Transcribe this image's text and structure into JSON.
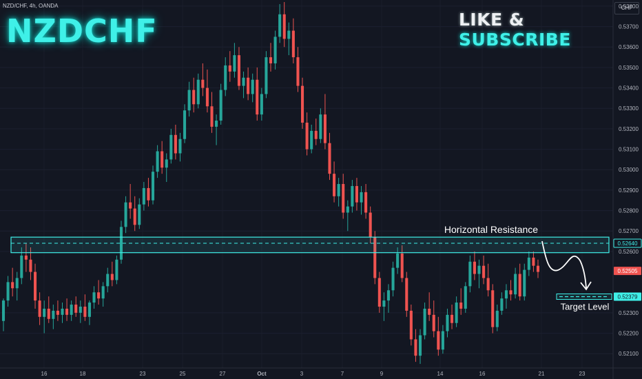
{
  "symbol_info": "NZD/CHF, 4h, OANDA",
  "title": "NZDCHF",
  "cta": {
    "part1": "LIKE & ",
    "part2": "SUBSCRIBE"
  },
  "currency": "CHF",
  "colors": {
    "bull": "#26a69a",
    "bear": "#ef5350",
    "accent": "#3ff0e8",
    "background": "#131722"
  },
  "chart_data": {
    "type": "candlestick",
    "timeframe": "4h",
    "y_axis_labels": [
      "0.53800",
      "0.53700",
      "0.53600",
      "0.53500",
      "0.53400",
      "0.53300",
      "0.53200",
      "0.53100",
      "0.53000",
      "0.52900",
      "0.52800",
      "0.52700",
      "0.52600",
      "0.52300",
      "0.52200",
      "0.52100"
    ],
    "x_axis_labels": [
      "16",
      "18",
      "23",
      "25",
      "27",
      "Oct",
      "3",
      "7",
      "9",
      "14",
      "16",
      "21",
      "23"
    ],
    "ylim": [
      0.5203,
      0.5383
    ],
    "resistance_zone": {
      "low": 0.52594,
      "high": 0.5267,
      "level": 0.5264,
      "label": "Horizontal Resistance",
      "level_label": "0.52640"
    },
    "target": {
      "level": 0.52379,
      "label": "Target Level",
      "level_label": "0.52379"
    },
    "current_price": {
      "value": 0.52505,
      "label": "0.52505"
    },
    "candles": [
      [
        0.5226,
        0.5237,
        0.5221,
        0.5236
      ],
      [
        0.5236,
        0.5248,
        0.5233,
        0.5245
      ],
      [
        0.5245,
        0.5252,
        0.5238,
        0.5242
      ],
      [
        0.5242,
        0.525,
        0.5236,
        0.5247
      ],
      [
        0.5247,
        0.5262,
        0.5244,
        0.5258
      ],
      [
        0.5258,
        0.5264,
        0.525,
        0.5256
      ],
      [
        0.5256,
        0.5262,
        0.5246,
        0.525
      ],
      [
        0.525,
        0.5254,
        0.5232,
        0.5236
      ],
      [
        0.5236,
        0.524,
        0.5224,
        0.5228
      ],
      [
        0.5228,
        0.5236,
        0.522,
        0.5232
      ],
      [
        0.5232,
        0.5238,
        0.5225,
        0.5227
      ],
      [
        0.5227,
        0.5234,
        0.5222,
        0.5231
      ],
      [
        0.5231,
        0.5236,
        0.5226,
        0.5229
      ],
      [
        0.5229,
        0.5235,
        0.5225,
        0.5232
      ],
      [
        0.5232,
        0.5237,
        0.5226,
        0.5229
      ],
      [
        0.5229,
        0.5236,
        0.5226,
        0.5234
      ],
      [
        0.5234,
        0.5238,
        0.5228,
        0.523
      ],
      [
        0.523,
        0.5236,
        0.5225,
        0.5233
      ],
      [
        0.5233,
        0.5239,
        0.5226,
        0.5228
      ],
      [
        0.5228,
        0.5236,
        0.5224,
        0.5235
      ],
      [
        0.5235,
        0.5243,
        0.5232,
        0.524
      ],
      [
        0.524,
        0.5246,
        0.5234,
        0.5237
      ],
      [
        0.5237,
        0.5245,
        0.5233,
        0.5243
      ],
      [
        0.5243,
        0.5252,
        0.524,
        0.5249
      ],
      [
        0.5249,
        0.5255,
        0.5243,
        0.5246
      ],
      [
        0.5246,
        0.5258,
        0.5244,
        0.5256
      ],
      [
        0.5256,
        0.5275,
        0.5254,
        0.5272
      ],
      [
        0.5272,
        0.5287,
        0.5269,
        0.5284
      ],
      [
        0.5284,
        0.5293,
        0.5276,
        0.5281
      ],
      [
        0.5281,
        0.5287,
        0.527,
        0.5273
      ],
      [
        0.5273,
        0.5286,
        0.5271,
        0.5283
      ],
      [
        0.5283,
        0.5294,
        0.528,
        0.5291
      ],
      [
        0.5291,
        0.5296,
        0.5282,
        0.5285
      ],
      [
        0.5285,
        0.5302,
        0.5283,
        0.5299
      ],
      [
        0.5299,
        0.5312,
        0.5296,
        0.5309
      ],
      [
        0.5309,
        0.5314,
        0.5298,
        0.5301
      ],
      [
        0.5301,
        0.5308,
        0.5294,
        0.5305
      ],
      [
        0.5305,
        0.532,
        0.5303,
        0.5317
      ],
      [
        0.5317,
        0.5322,
        0.5305,
        0.5308
      ],
      [
        0.5308,
        0.5318,
        0.5304,
        0.5315
      ],
      [
        0.5315,
        0.5332,
        0.5313,
        0.5329
      ],
      [
        0.5329,
        0.5343,
        0.5326,
        0.5339
      ],
      [
        0.5339,
        0.5345,
        0.5328,
        0.5332
      ],
      [
        0.5332,
        0.5347,
        0.533,
        0.5344
      ],
      [
        0.5344,
        0.5352,
        0.5336,
        0.534
      ],
      [
        0.534,
        0.5349,
        0.5328,
        0.5331
      ],
      [
        0.5331,
        0.5338,
        0.5318,
        0.5321
      ],
      [
        0.5321,
        0.5327,
        0.5312,
        0.5324
      ],
      [
        0.5324,
        0.5342,
        0.5322,
        0.5339
      ],
      [
        0.5339,
        0.5355,
        0.5336,
        0.5351
      ],
      [
        0.5351,
        0.5358,
        0.5343,
        0.5348
      ],
      [
        0.5348,
        0.5362,
        0.5345,
        0.5356
      ],
      [
        0.5356,
        0.536,
        0.5339,
        0.5341
      ],
      [
        0.5341,
        0.5348,
        0.5335,
        0.5345
      ],
      [
        0.5345,
        0.535,
        0.5334,
        0.5337
      ],
      [
        0.5337,
        0.5347,
        0.5333,
        0.5344
      ],
      [
        0.5344,
        0.535,
        0.5324,
        0.5327
      ],
      [
        0.5327,
        0.534,
        0.5324,
        0.5337
      ],
      [
        0.5337,
        0.5358,
        0.5335,
        0.5355
      ],
      [
        0.5355,
        0.5362,
        0.5348,
        0.5352
      ],
      [
        0.5352,
        0.5368,
        0.5349,
        0.5365
      ],
      [
        0.5365,
        0.5381,
        0.5362,
        0.5376
      ],
      [
        0.5376,
        0.5382,
        0.536,
        0.5364
      ],
      [
        0.5364,
        0.5372,
        0.5356,
        0.5368
      ],
      [
        0.5368,
        0.5374,
        0.5352,
        0.5355
      ],
      [
        0.5355,
        0.536,
        0.5338,
        0.5341
      ],
      [
        0.5341,
        0.5345,
        0.532,
        0.5323
      ],
      [
        0.5323,
        0.5328,
        0.5307,
        0.531
      ],
      [
        0.531,
        0.5322,
        0.5308,
        0.5319
      ],
      [
        0.5319,
        0.5325,
        0.5312,
        0.5315
      ],
      [
        0.5315,
        0.533,
        0.5313,
        0.5327
      ],
      [
        0.5327,
        0.5337,
        0.531,
        0.5313
      ],
      [
        0.5313,
        0.5318,
        0.5295,
        0.5298
      ],
      [
        0.5298,
        0.5304,
        0.5284,
        0.5287
      ],
      [
        0.5287,
        0.5296,
        0.5282,
        0.5293
      ],
      [
        0.5293,
        0.5298,
        0.5276,
        0.5279
      ],
      [
        0.5279,
        0.5285,
        0.527,
        0.5282
      ],
      [
        0.5282,
        0.5295,
        0.5279,
        0.5292
      ],
      [
        0.5292,
        0.5296,
        0.528,
        0.5284
      ],
      [
        0.5284,
        0.5292,
        0.5278,
        0.5289
      ],
      [
        0.5289,
        0.5293,
        0.5276,
        0.5279
      ],
      [
        0.5279,
        0.5282,
        0.5264,
        0.5267
      ],
      [
        0.5267,
        0.527,
        0.5244,
        0.5247
      ],
      [
        0.5247,
        0.525,
        0.523,
        0.5233
      ],
      [
        0.5233,
        0.524,
        0.5226,
        0.5236
      ],
      [
        0.5236,
        0.5244,
        0.523,
        0.5241
      ],
      [
        0.5241,
        0.5255,
        0.5238,
        0.5252
      ],
      [
        0.5252,
        0.5262,
        0.5249,
        0.5259
      ],
      [
        0.5259,
        0.5263,
        0.5245,
        0.5247
      ],
      [
        0.5247,
        0.525,
        0.5228,
        0.5231
      ],
      [
        0.5231,
        0.5234,
        0.5214,
        0.5217
      ],
      [
        0.5217,
        0.5222,
        0.5206,
        0.5209
      ],
      [
        0.5209,
        0.5222,
        0.5205,
        0.5219
      ],
      [
        0.5219,
        0.5235,
        0.5217,
        0.5232
      ],
      [
        0.5232,
        0.524,
        0.5226,
        0.5229
      ],
      [
        0.5229,
        0.5236,
        0.5218,
        0.5221
      ],
      [
        0.5221,
        0.5228,
        0.5209,
        0.5212
      ],
      [
        0.5212,
        0.5224,
        0.521,
        0.5221
      ],
      [
        0.5221,
        0.5232,
        0.5218,
        0.5229
      ],
      [
        0.5229,
        0.5234,
        0.5222,
        0.5225
      ],
      [
        0.5225,
        0.5238,
        0.5223,
        0.5235
      ],
      [
        0.5235,
        0.5242,
        0.5229,
        0.5232
      ],
      [
        0.5232,
        0.5245,
        0.523,
        0.5243
      ],
      [
        0.5243,
        0.5258,
        0.524,
        0.5255
      ],
      [
        0.5255,
        0.526,
        0.5246,
        0.5249
      ],
      [
        0.5249,
        0.5256,
        0.5242,
        0.5253
      ],
      [
        0.5253,
        0.5258,
        0.5244,
        0.5247
      ],
      [
        0.5247,
        0.5254,
        0.5238,
        0.5241
      ],
      [
        0.5241,
        0.5244,
        0.522,
        0.5223
      ],
      [
        0.5223,
        0.5234,
        0.5221,
        0.5231
      ],
      [
        0.5231,
        0.524,
        0.5229,
        0.5237
      ],
      [
        0.5237,
        0.5244,
        0.5232,
        0.5241
      ],
      [
        0.5241,
        0.5246,
        0.5236,
        0.5239
      ],
      [
        0.5239,
        0.5252,
        0.5237,
        0.5249
      ],
      [
        0.5249,
        0.5254,
        0.5236,
        0.5238
      ],
      [
        0.5238,
        0.5254,
        0.5236,
        0.5251
      ],
      [
        0.5251,
        0.526,
        0.5248,
        0.5257
      ],
      [
        0.5257,
        0.526,
        0.525,
        0.5253
      ],
      [
        0.5253,
        0.5256,
        0.5247,
        0.525
      ]
    ]
  }
}
